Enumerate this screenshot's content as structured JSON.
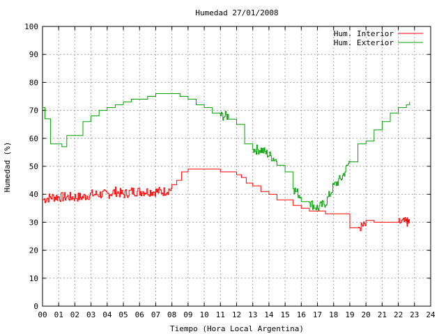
{
  "chart_data": {
    "type": "line",
    "title": "Humedad 27/01/2008",
    "xlabel": "Tiempo (Hora Local Argentina)",
    "ylabel": "Humedad (%)",
    "xlim": [
      0,
      24
    ],
    "ylim": [
      0,
      100
    ],
    "grid": true,
    "legend_position": "top-right",
    "x_ticks": [
      "00",
      "01",
      "02",
      "03",
      "04",
      "05",
      "06",
      "07",
      "08",
      "09",
      "10",
      "11",
      "12",
      "13",
      "14",
      "15",
      "16",
      "17",
      "18",
      "19",
      "20",
      "21",
      "22",
      "23",
      "24"
    ],
    "y_ticks": [
      "0",
      "10",
      "20",
      "30",
      "40",
      "50",
      "60",
      "70",
      "80",
      "90",
      "100"
    ],
    "series": [
      {
        "name": "Hum. Interior",
        "color": "#ff0000",
        "noisy_segments": [
          [
            0.0,
            1.5
          ],
          [
            2.0,
            3.2
          ],
          [
            3.4,
            4.8
          ],
          [
            5.0,
            5.6
          ],
          [
            6.0,
            7.6
          ],
          [
            19.3,
            19.6
          ],
          [
            22.0,
            22.2
          ]
        ],
        "x": [
          0.0,
          0.5,
          1.0,
          1.5,
          2.0,
          2.5,
          3.0,
          3.5,
          4.0,
          4.5,
          5.0,
          5.5,
          6.0,
          6.5,
          7.0,
          7.5,
          8.0,
          8.3,
          8.6,
          9.0,
          9.5,
          10.0,
          10.5,
          11.0,
          11.5,
          12.0,
          12.3,
          12.6,
          13.0,
          13.5,
          14.0,
          14.5,
          15.0,
          15.5,
          16.0,
          16.5,
          17.0,
          17.5,
          18.0,
          18.5,
          19.0,
          19.5,
          20.0,
          20.5,
          21.0,
          21.5,
          22.0,
          22.5,
          22.7
        ],
        "y": [
          38,
          39,
          39,
          39,
          39,
          39,
          40,
          40,
          40,
          41,
          40,
          41,
          41,
          41,
          41,
          41,
          42,
          45,
          48,
          49,
          49,
          49,
          49,
          48,
          48,
          47,
          46,
          44,
          43,
          41,
          40,
          38,
          38,
          36,
          35,
          34,
          34,
          33,
          33,
          33,
          28,
          28,
          29,
          30,
          30,
          30,
          30,
          30,
          30
        ]
      },
      {
        "name": "Hum. Exterior",
        "color": "#00a000",
        "noisy_segments": [
          [
            13.0,
            13.5
          ],
          [
            13.8,
            14.3
          ],
          [
            15.4,
            15.8
          ],
          [
            16.2,
            17.0
          ],
          [
            17.4,
            17.6
          ],
          [
            18.0,
            18.6
          ],
          [
            10.7,
            11.2
          ]
        ],
        "x": [
          0.0,
          0.15,
          0.5,
          1.0,
          1.2,
          1.5,
          2.0,
          2.5,
          3.0,
          3.5,
          4.0,
          4.5,
          5.0,
          5.5,
          6.0,
          6.5,
          7.0,
          7.5,
          8.0,
          8.5,
          9.0,
          9.5,
          10.0,
          10.5,
          11.0,
          11.5,
          12.0,
          12.5,
          13.0,
          13.5,
          14.0,
          14.5,
          15.0,
          15.5,
          16.0,
          16.5,
          17.0,
          17.5,
          18.0,
          18.5,
          19.0,
          19.5,
          20.0,
          20.5,
          21.0,
          21.5,
          22.0,
          22.5,
          22.7
        ],
        "y": [
          71,
          67,
          58,
          58,
          57,
          61,
          61,
          66,
          68,
          70,
          71,
          72,
          73,
          74,
          74,
          75,
          76,
          76,
          76,
          75,
          74,
          72,
          71,
          69,
          68,
          68,
          65,
          58,
          56,
          56,
          54,
          52,
          48,
          42,
          39,
          37,
          35,
          37,
          43,
          46,
          52,
          58,
          59,
          63,
          66,
          69,
          71,
          72,
          73
        ]
      }
    ]
  }
}
